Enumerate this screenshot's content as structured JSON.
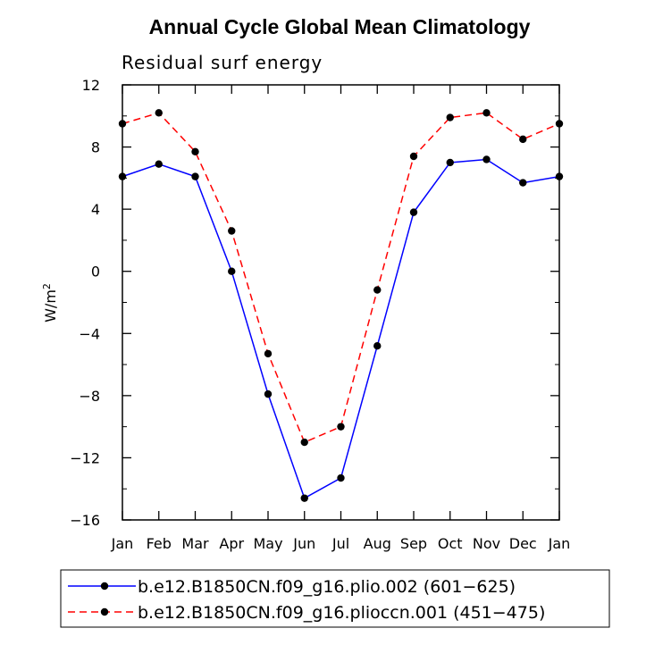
{
  "chart_data": {
    "type": "line",
    "title": "Annual Cycle Global Mean Climatology",
    "subtitle": "Residual surf energy",
    "xlabel": "",
    "ylabel": "W/m",
    "ylabel_superscript": "2",
    "categories": [
      "Jan",
      "Feb",
      "Mar",
      "Apr",
      "May",
      "Jun",
      "Jul",
      "Aug",
      "Sep",
      "Oct",
      "Nov",
      "Dec",
      "Jan"
    ],
    "ylim": [
      -16,
      12
    ],
    "yticks": [
      12,
      8,
      4,
      0,
      -4,
      -8,
      -12,
      -16
    ],
    "ytick_labels": [
      "12",
      "8",
      "4",
      "0",
      "−4",
      "−8",
      "−12",
      "−16"
    ],
    "series": [
      {
        "name": "b.e12.B1850CN.f09_g16.plio.002 (601−625)",
        "color": "#0000ff",
        "dash": "solid",
        "values": [
          6.1,
          6.9,
          6.1,
          0.0,
          -7.9,
          -14.6,
          -13.3,
          -4.8,
          3.8,
          7.0,
          7.2,
          5.7,
          6.1
        ]
      },
      {
        "name": "b.e12.B1850CN.f09_g16.plioccn.001 (451−475)",
        "color": "#ff0000",
        "dash": "dashed",
        "values": [
          9.5,
          10.2,
          7.7,
          2.6,
          -5.3,
          -11.0,
          -10.0,
          -1.2,
          7.4,
          9.9,
          10.2,
          8.5,
          9.5
        ]
      }
    ],
    "legend_position": "bottom"
  }
}
